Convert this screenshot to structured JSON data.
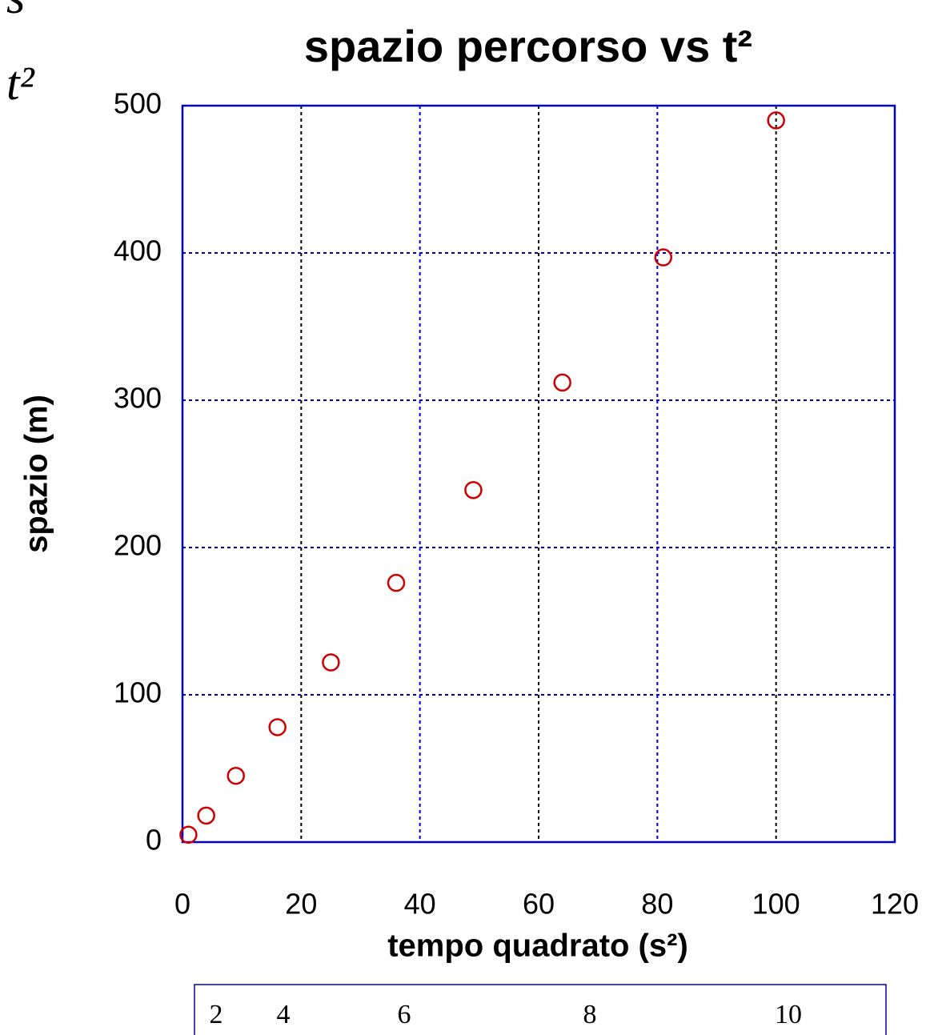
{
  "chart_data": {
    "type": "scatter",
    "title": "spazio percorso vs t²",
    "x_label": "tempo quadrato  (s²)",
    "y_label": "spazio   (m)",
    "series": [
      {
        "name": "spazio",
        "color": "#cc0000",
        "x": [
          1,
          4,
          9,
          16,
          25,
          36,
          49,
          64,
          81,
          100
        ],
        "values": [
          5,
          18,
          45,
          78,
          122,
          176,
          239,
          312,
          397,
          490
        ]
      }
    ],
    "xlim": [
      0,
      120
    ],
    "xticks": [
      0,
      20,
      40,
      60,
      80,
      100,
      120
    ],
    "ylim": [
      0,
      500
    ],
    "yticks": [
      0,
      100,
      200,
      300,
      400,
      500
    ],
    "grid": true,
    "axis_color": "#0000cc"
  },
  "annotations": [
    "s",
    "t²"
  ],
  "table": {
    "cells": [
      2,
      4,
      6,
      8,
      10
    ]
  }
}
